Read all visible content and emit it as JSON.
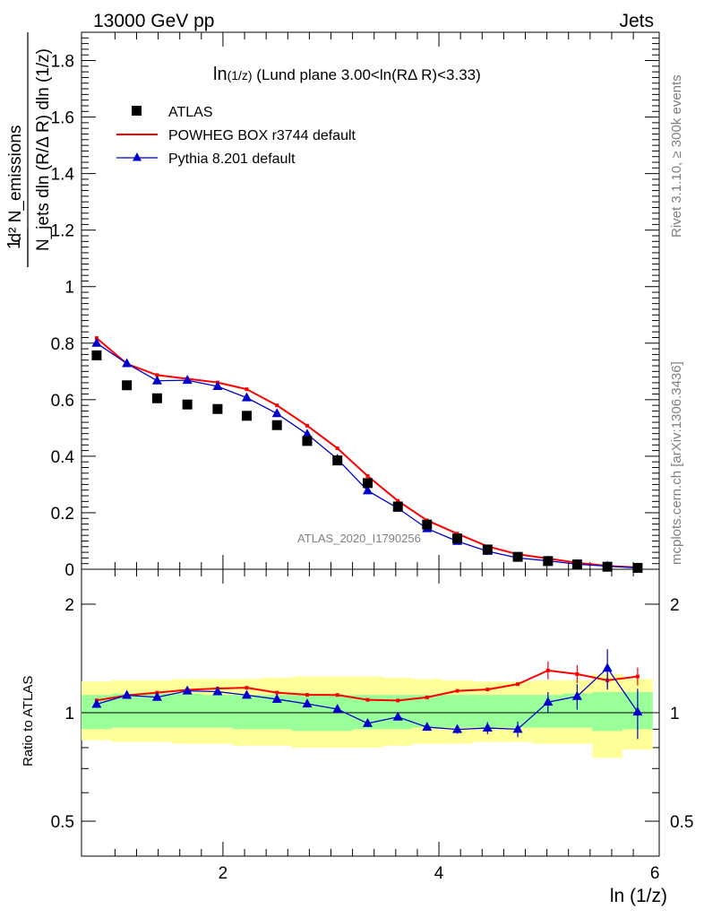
{
  "header": {
    "left": "13000 GeV pp",
    "right": "Jets"
  },
  "side_labels": {
    "rivet": "Rivet 3.1.10, ≥ 300k events",
    "mcplots": "mcplots.cern.ch [arXiv:1306.3436]"
  },
  "watermark": "ATLAS_2020_I1790256",
  "colors": {
    "atlas": "#000000",
    "powheg": "#ff0000",
    "pythia": "#0000cc",
    "band_inner": "#99ff99",
    "band_outer": "#ffff99"
  },
  "chart_data": [
    {
      "type": "scatter",
      "title": "ln(1/z) (Lund plane 3.00<ln(RΔ R)<3.33)",
      "title_prefix": "ln",
      "title_sub": "(1/z)",
      "title_rest": " (Lund plane 3.00<ln(RΔ R)<3.33)",
      "xlabel": "ln (1/z)",
      "ylabel_numerator": "d² N_emissions",
      "ylabel_denominator": "N_jets dln (R/Δ R) dln (1/z)",
      "xlim": [
        0.69,
        6.04
      ],
      "ylim": [
        0,
        1.9
      ],
      "x_ticks": [
        "2",
        "4",
        "6"
      ],
      "y_ticks": [
        "0",
        "0.2",
        "0.4",
        "0.6",
        "0.8",
        "1",
        "1.2",
        "1.4",
        "1.6",
        "1.8"
      ],
      "legend": [
        "ATLAS",
        "POWHEG BOX r3744 default",
        "Pythia 8.201 default"
      ],
      "legend_placement": "top-left",
      "x": [
        0.83,
        1.11,
        1.39,
        1.67,
        1.95,
        2.22,
        2.5,
        2.78,
        3.06,
        3.34,
        3.62,
        3.89,
        4.17,
        4.45,
        4.73,
        5.01,
        5.28,
        5.56,
        5.84
      ],
      "series": [
        {
          "name": "ATLAS",
          "marker": "square",
          "values": [
            0.757,
            0.651,
            0.605,
            0.583,
            0.567,
            0.543,
            0.51,
            0.454,
            0.385,
            0.305,
            0.222,
            0.158,
            0.109,
            0.07,
            0.044,
            0.029,
            0.017,
            0.009,
            0.005
          ]
        },
        {
          "name": "POWHEG BOX r3744 default",
          "marker": "line",
          "values": [
            0.818,
            0.727,
            0.687,
            0.674,
            0.661,
            0.637,
            0.58,
            0.508,
            0.428,
            0.33,
            0.242,
            0.173,
            0.126,
            0.081,
            0.053,
            0.038,
            0.023,
            0.012,
            0.0065
          ]
        },
        {
          "name": "Pythia 8.201 default",
          "marker": "triangle",
          "values": [
            0.8,
            0.728,
            0.667,
            0.669,
            0.647,
            0.607,
            0.551,
            0.478,
            0.39,
            0.278,
            0.216,
            0.144,
            0.099,
            0.064,
            0.04,
            0.03,
            0.018,
            0.011,
            0.005
          ]
        }
      ]
    },
    {
      "type": "scatter",
      "ylabel": "Ratio to ATLAS",
      "xlabel": "ln (1/z)",
      "xlim": [
        0.69,
        6.04
      ],
      "ylim": [
        0.4,
        2.5
      ],
      "log_y": true,
      "reference_line": 1,
      "y_ticks": [
        "0.5",
        "1",
        "2"
      ],
      "x_ticks": [
        "2",
        "4",
        "6"
      ],
      "x": [
        0.83,
        1.11,
        1.39,
        1.67,
        1.95,
        2.22,
        2.5,
        2.78,
        3.06,
        3.34,
        3.62,
        3.89,
        4.17,
        4.45,
        4.73,
        5.01,
        5.28,
        5.56,
        5.84
      ],
      "bands": {
        "inner_low": [
          0.9,
          0.91,
          0.91,
          0.91,
          0.91,
          0.9,
          0.9,
          0.89,
          0.89,
          0.9,
          0.9,
          0.91,
          0.91,
          0.91,
          0.91,
          0.91,
          0.91,
          0.89,
          0.9
        ],
        "inner_high": [
          1.12,
          1.13,
          1.13,
          1.13,
          1.12,
          1.12,
          1.12,
          1.12,
          1.12,
          1.12,
          1.12,
          1.12,
          1.12,
          1.12,
          1.12,
          1.12,
          1.13,
          1.14,
          1.14
        ],
        "outer_low": [
          0.84,
          0.83,
          0.83,
          0.82,
          0.82,
          0.81,
          0.81,
          0.8,
          0.8,
          0.8,
          0.81,
          0.82,
          0.82,
          0.83,
          0.83,
          0.82,
          0.82,
          0.75,
          0.79
        ],
        "outer_high": [
          1.22,
          1.23,
          1.23,
          1.24,
          1.24,
          1.24,
          1.25,
          1.26,
          1.26,
          1.26,
          1.25,
          1.24,
          1.23,
          1.22,
          1.22,
          1.23,
          1.23,
          1.28,
          1.24
        ]
      },
      "series": [
        {
          "name": "POWHEG BOX r3744 default",
          "values": [
            1.082,
            1.117,
            1.137,
            1.157,
            1.167,
            1.173,
            1.137,
            1.121,
            1.12,
            1.086,
            1.081,
            1.103,
            1.15,
            1.16,
            1.2,
            1.31,
            1.28,
            1.23,
            1.26
          ]
        },
        {
          "name": "Pythia 8.201 default",
          "values": [
            1.056,
            1.118,
            1.104,
            1.15,
            1.144,
            1.119,
            1.09,
            1.058,
            1.023,
            0.934,
            0.973,
            0.912,
            0.899,
            0.907,
            0.9,
            1.07,
            1.11,
            1.33,
            1.005
          ]
        }
      ]
    }
  ]
}
